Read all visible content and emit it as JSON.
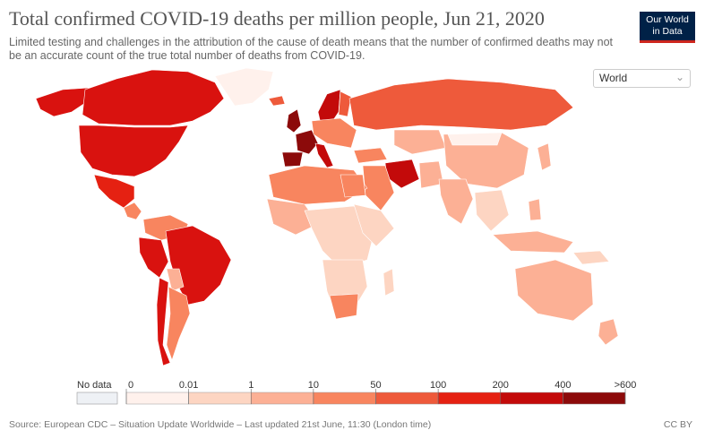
{
  "header": {
    "title": "Total confirmed COVID-19 deaths per million people, Jun 21, 2020",
    "subtitle": "Limited testing and challenges in the attribution of the cause of death means that the number of confirmed deaths may not be an accurate count of the true total number of deaths from COVID-19."
  },
  "logo": {
    "line1": "Our World",
    "line2": "in Data"
  },
  "region_select": {
    "value": "World"
  },
  "legend": {
    "no_data_label": "No data",
    "no_data_color": "#eef1f5",
    "tick_labels": [
      "0",
      "0.01",
      "1",
      "10",
      "50",
      "100",
      "200",
      "400",
      ">600"
    ],
    "bin_colors": [
      "#fff1ec",
      "#fdd5c2",
      "#fcb095",
      "#f8855f",
      "#ee5a3b",
      "#e52112",
      "#c30a0a",
      "#8c0a0a"
    ]
  },
  "map_colors": {
    "ocean": "#ffffff",
    "border": "#ffffff"
  },
  "footer": {
    "source": "Source: European CDC – Situation Update Worldwide – Last updated 21st June, 11:30 (London time)",
    "license": "CC BY"
  }
}
